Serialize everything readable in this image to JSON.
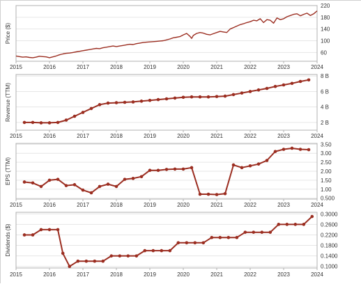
{
  "colors": {
    "series": "#9b2d20",
    "border": "#b0b0b0",
    "grid": "#e6e6e6",
    "text": "#333333"
  },
  "chart_data": [
    {
      "type": "line",
      "ylabel": "Price ($)",
      "ylim": [
        30,
        220
      ],
      "yticks": [
        220,
        180,
        140,
        100,
        60
      ],
      "ytick_labels": [
        "220",
        "180",
        "140",
        "100",
        "60"
      ],
      "xlim": [
        2015.0,
        2024.0
      ],
      "xticks": [
        2015,
        2016,
        2017,
        2018,
        2019,
        2020,
        2021,
        2022,
        2023,
        2024
      ],
      "xtick_labels": [
        "2015",
        "2016",
        "2017",
        "2018",
        "2019",
        "2020",
        "2021",
        "2022",
        "2023",
        "2024"
      ],
      "grid": "horizontal",
      "markers": false,
      "x": [
        2015.0,
        2015.1,
        2015.2,
        2015.3,
        2015.4,
        2015.5,
        2015.6,
        2015.7,
        2015.8,
        2015.9,
        2016.0,
        2016.1,
        2016.2,
        2016.3,
        2016.4,
        2016.5,
        2016.6,
        2016.7,
        2016.8,
        2016.9,
        2017.0,
        2017.1,
        2017.2,
        2017.3,
        2017.4,
        2017.5,
        2017.6,
        2017.7,
        2017.8,
        2017.9,
        2018.0,
        2018.1,
        2018.2,
        2018.3,
        2018.4,
        2018.5,
        2018.6,
        2018.7,
        2018.8,
        2018.9,
        2019.0,
        2019.1,
        2019.2,
        2019.3,
        2019.4,
        2019.5,
        2019.6,
        2019.7,
        2019.8,
        2019.9,
        2020.0,
        2020.1,
        2020.2,
        2020.25,
        2020.3,
        2020.4,
        2020.5,
        2020.6,
        2020.7,
        2020.8,
        2020.9,
        2021.0,
        2021.1,
        2021.2,
        2021.3,
        2021.4,
        2021.5,
        2021.6,
        2021.7,
        2021.8,
        2021.9,
        2022.0,
        2022.1,
        2022.2,
        2022.3,
        2022.4,
        2022.5,
        2022.6,
        2022.7,
        2022.8,
        2022.9,
        2023.0,
        2023.1,
        2023.2,
        2023.3,
        2023.4,
        2023.5,
        2023.6,
        2023.7,
        2023.8,
        2023.9,
        2024.0
      ],
      "y": [
        48,
        46,
        44,
        45,
        43,
        42,
        44,
        47,
        46,
        45,
        42,
        45,
        48,
        52,
        55,
        57,
        58,
        60,
        62,
        64,
        66,
        68,
        70,
        72,
        74,
        73,
        76,
        78,
        80,
        82,
        80,
        82,
        84,
        86,
        88,
        87,
        90,
        92,
        94,
        95,
        96,
        97,
        98,
        99,
        100,
        103,
        106,
        110,
        112,
        114,
        120,
        125,
        115,
        108,
        118,
        125,
        128,
        126,
        122,
        120,
        124,
        128,
        132,
        130,
        128,
        140,
        145,
        150,
        155,
        158,
        162,
        165,
        170,
        168,
        175,
        162,
        172,
        170,
        160,
        178,
        172,
        175,
        182,
        186,
        190,
        192,
        185,
        190,
        194,
        186,
        192,
        202
      ]
    },
    {
      "type": "line",
      "ylabel": "Revenue (TTM)",
      "ylim": [
        1000000000,
        8200000000
      ],
      "yticks": [
        8000000000,
        6000000000,
        4000000000,
        2000000000
      ],
      "ytick_labels": [
        "8 B",
        "6 B",
        "4 B",
        "2 B"
      ],
      "xlim": [
        2015.0,
        2024.0
      ],
      "xticks": [
        2015,
        2016,
        2017,
        2018,
        2019,
        2020,
        2021,
        2022,
        2023,
        2024
      ],
      "xtick_labels": [
        "2015",
        "2016",
        "2017",
        "2018",
        "2019",
        "2020",
        "2021",
        "2022",
        "2023",
        "2024"
      ],
      "grid": "horizontal",
      "markers": true,
      "x": [
        2015.25,
        2015.5,
        2015.75,
        2016.0,
        2016.25,
        2016.5,
        2016.75,
        2017.0,
        2017.25,
        2017.5,
        2017.75,
        2018.0,
        2018.25,
        2018.5,
        2018.75,
        2019.0,
        2019.25,
        2019.5,
        2019.75,
        2020.0,
        2020.25,
        2020.5,
        2020.75,
        2021.0,
        2021.25,
        2021.5,
        2021.75,
        2022.0,
        2022.25,
        2022.5,
        2022.75,
        2023.0,
        2023.25,
        2023.5,
        2023.75
      ],
      "y": [
        2000000000,
        2000000000,
        1950000000,
        1950000000,
        2000000000,
        2300000000,
        2800000000,
        3300000000,
        3800000000,
        4300000000,
        4500000000,
        4550000000,
        4600000000,
        4650000000,
        4750000000,
        4850000000,
        4950000000,
        5050000000,
        5150000000,
        5250000000,
        5300000000,
        5300000000,
        5300000000,
        5350000000,
        5400000000,
        5600000000,
        5800000000,
        6000000000,
        6200000000,
        6400000000,
        6650000000,
        6850000000,
        7050000000,
        7300000000,
        7500000000
      ]
    },
    {
      "type": "line",
      "ylabel": "EPS (TTM)",
      "ylim": [
        0.45,
        3.55
      ],
      "yticks": [
        3.5,
        3.0,
        2.5,
        2.0,
        1.5,
        1.0,
        0.5
      ],
      "ytick_labels": [
        "3.50",
        "3.00",
        "2.50",
        "2.00",
        "1.50",
        "1.00",
        "0.500"
      ],
      "xlim": [
        2015.0,
        2024.0
      ],
      "xticks": [
        2015,
        2016,
        2017,
        2018,
        2019,
        2020,
        2021,
        2022,
        2023,
        2024
      ],
      "xtick_labels": [
        "2015",
        "2016",
        "2017",
        "2018",
        "2019",
        "2020",
        "2021",
        "2022",
        "2023",
        "2024"
      ],
      "grid": "horizontal",
      "markers": true,
      "x": [
        2015.25,
        2015.5,
        2015.75,
        2016.0,
        2016.25,
        2016.5,
        2016.75,
        2017.0,
        2017.25,
        2017.5,
        2017.75,
        2018.0,
        2018.25,
        2018.5,
        2018.75,
        2019.0,
        2019.25,
        2019.5,
        2019.75,
        2020.0,
        2020.25,
        2020.5,
        2020.75,
        2021.0,
        2021.25,
        2021.5,
        2021.75,
        2022.0,
        2022.25,
        2022.5,
        2022.75,
        2023.0,
        2023.25,
        2023.5,
        2023.75
      ],
      "y": [
        1.4,
        1.35,
        1.15,
        1.5,
        1.55,
        1.2,
        1.25,
        0.95,
        0.8,
        1.15,
        1.28,
        1.15,
        1.55,
        1.6,
        1.7,
        2.05,
        2.05,
        2.1,
        2.12,
        2.12,
        2.2,
        0.72,
        0.72,
        0.7,
        0.75,
        2.35,
        2.2,
        2.3,
        2.4,
        2.6,
        3.1,
        3.22,
        3.28,
        3.22,
        3.2
      ]
    },
    {
      "type": "line",
      "ylabel": "Dividends ($)",
      "ylim": [
        0.094,
        0.306
      ],
      "yticks": [
        0.3,
        0.26,
        0.22,
        0.18,
        0.14,
        0.1
      ],
      "ytick_labels": [
        "0.3000",
        "0.2600",
        "0.2200",
        "0.1800",
        "0.1400",
        "0.1000"
      ],
      "xlim": [
        2015.0,
        2024.0
      ],
      "xticks": [
        2015,
        2016,
        2017,
        2018,
        2019,
        2020,
        2021,
        2022,
        2023,
        2024
      ],
      "xtick_labels": [
        "2015",
        "2016",
        "2017",
        "2018",
        "2019",
        "2020",
        "2021",
        "2022",
        "2023",
        "2024"
      ],
      "grid": "horizontal",
      "markers": true,
      "x": [
        2015.25,
        2015.5,
        2015.75,
        2016.0,
        2016.25,
        2016.4,
        2016.6,
        2016.85,
        2017.1,
        2017.35,
        2017.6,
        2017.85,
        2018.1,
        2018.35,
        2018.6,
        2018.85,
        2019.1,
        2019.35,
        2019.6,
        2019.85,
        2020.1,
        2020.35,
        2020.6,
        2020.85,
        2021.1,
        2021.35,
        2021.6,
        2021.85,
        2022.1,
        2022.35,
        2022.6,
        2022.85,
        2023.1,
        2023.35,
        2023.6,
        2023.85
      ],
      "y": [
        0.22,
        0.22,
        0.24,
        0.24,
        0.24,
        0.15,
        0.1,
        0.12,
        0.12,
        0.12,
        0.12,
        0.14,
        0.14,
        0.14,
        0.14,
        0.16,
        0.16,
        0.16,
        0.16,
        0.19,
        0.19,
        0.19,
        0.19,
        0.21,
        0.21,
        0.21,
        0.21,
        0.23,
        0.23,
        0.23,
        0.23,
        0.26,
        0.26,
        0.26,
        0.26,
        0.29
      ]
    }
  ]
}
